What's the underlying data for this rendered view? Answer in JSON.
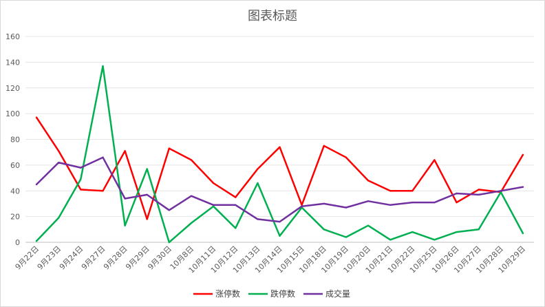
{
  "chart_data": {
    "type": "line",
    "title": "图表标题",
    "xlabel": "",
    "ylabel": "",
    "ylim": [
      0,
      160
    ],
    "yticks": [
      0,
      20,
      40,
      60,
      80,
      100,
      120,
      140,
      160
    ],
    "grid": true,
    "legend_position": "bottom",
    "categories": [
      "9月22日",
      "9月23日",
      "9月24日",
      "9月27日",
      "9月28日",
      "9月29日",
      "9月30日",
      "10月8日",
      "10月11日",
      "10月12日",
      "10月13日",
      "10月14日",
      "10月15日",
      "10月18日",
      "10月19日",
      "10月20日",
      "10月21日",
      "10月22日",
      "10月25日",
      "10月26日",
      "10月27日",
      "10月28日",
      "10月29日"
    ],
    "series": [
      {
        "name": "涨停数",
        "color": "#ff0000",
        "values": [
          97,
          71,
          41,
          40,
          71,
          18,
          73,
          64,
          46,
          35,
          57,
          74,
          29,
          75,
          66,
          48,
          40,
          40,
          64,
          31,
          41,
          39,
          68
        ]
      },
      {
        "name": "跌停数",
        "color": "#00b050",
        "values": [
          1,
          19,
          49,
          137,
          13,
          57,
          0,
          15,
          28,
          11,
          46,
          5,
          27,
          10,
          4,
          13,
          2,
          8,
          2,
          8,
          10,
          39,
          7
        ]
      },
      {
        "name": "成交量",
        "color": "#7030a0",
        "values": [
          45,
          62,
          58,
          66,
          34,
          37,
          25,
          36,
          29,
          29,
          18,
          16,
          28,
          30,
          27,
          32,
          29,
          31,
          31,
          38,
          37,
          40,
          43
        ]
      }
    ]
  }
}
